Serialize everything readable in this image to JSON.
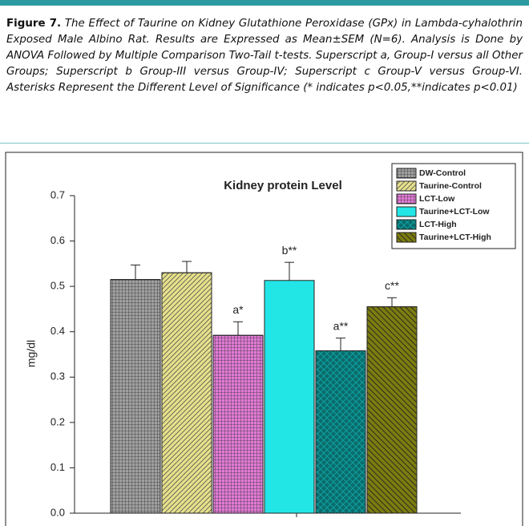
{
  "caption": {
    "label": "Figure 7.",
    "text": "The Effect of Taurine on Kidney Glutathione Peroxidase (GPx) in Lambda-cyhalothrin Exposed Male Albino Rat. Results are Expressed as Mean±SEM (N=6). Analysis is Done by ANOVA Followed by Multiple Comparison Two-Tail t-tests. Superscript a, Group-I versus all Other Groups; Superscript b Group-III versus Group-IV; Superscript c Group-V versus Group-VI. Asterisks Represent the Different Level of Significance (* indicates p<0.05,**indicates p<0.01)"
  },
  "chart_data": {
    "type": "bar",
    "title": "Kidney protein Level",
    "ylabel": "mg/dl",
    "categories": [
      "DW-Control",
      "Taurine-Control",
      "LCT-Low",
      "Taurine+LCT-Low",
      "LCT-High",
      "Taurine+LCT-High"
    ],
    "values": [
      0.515,
      0.53,
      0.392,
      0.513,
      0.358,
      0.455
    ],
    "errors": [
      0.032,
      0.025,
      0.03,
      0.04,
      0.028,
      0.02
    ],
    "annotations": [
      null,
      null,
      "a*",
      "b**",
      "a**",
      "c**"
    ],
    "colors": [
      "#a0a0a0",
      "#e6e08a",
      "#e27ad6",
      "#22e6e6",
      "#0b6b6b",
      "#7c7c10"
    ],
    "hatches": [
      "grid",
      "diagonal",
      "grid",
      "none",
      "cross",
      "backdiagonal"
    ],
    "ylim": [
      0,
      0.7
    ],
    "yticks": [
      {
        "value": 0,
        "label": "0.0"
      },
      0.1,
      0.2,
      0.3,
      0.4,
      0.5,
      0.6,
      0.7
    ],
    "legend": "upper right"
  }
}
